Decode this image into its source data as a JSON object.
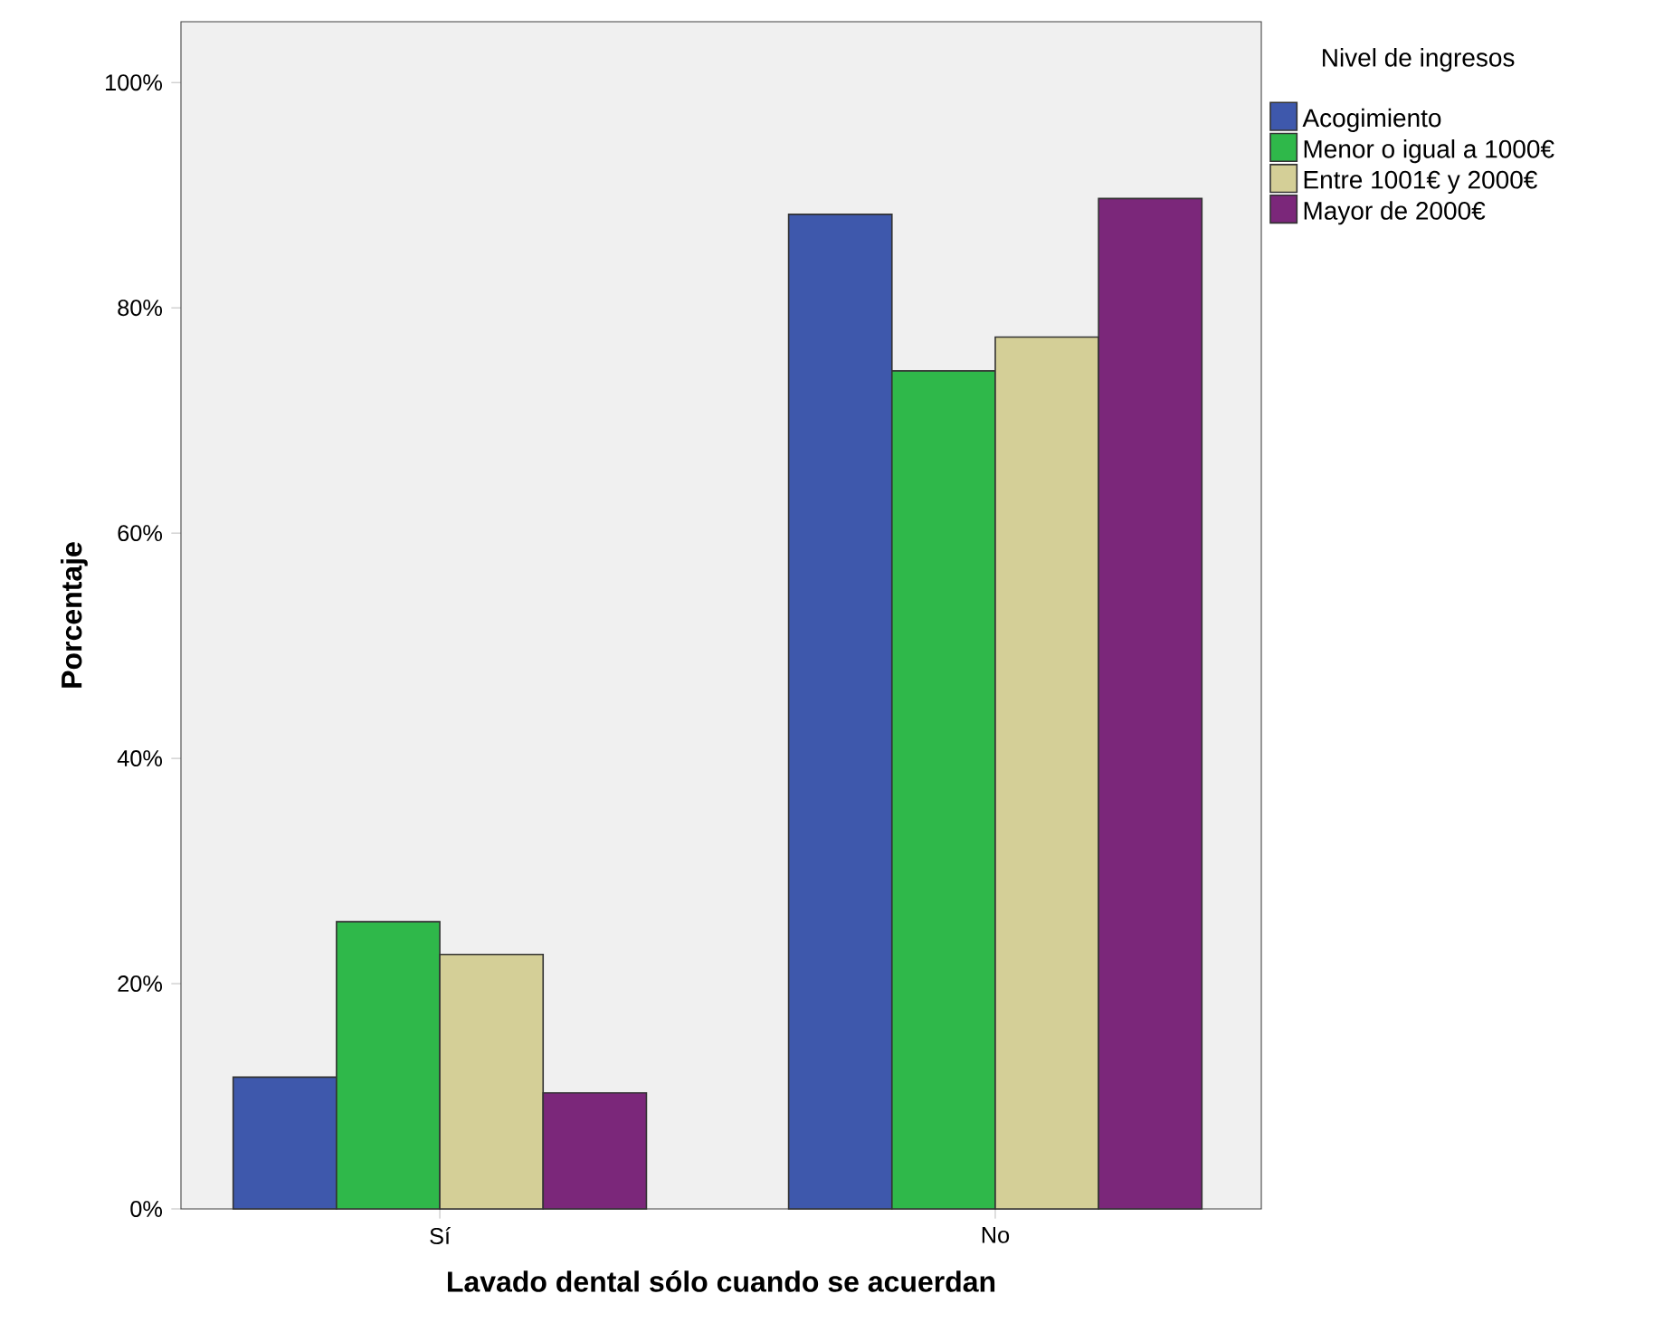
{
  "chart_data": {
    "type": "bar",
    "xlabel": "Lavado dental sólo cuando se acuerdan",
    "ylabel": "Porcentaje",
    "legend_title": "Nivel de ingresos",
    "categories": [
      "Sí",
      "No"
    ],
    "series": [
      {
        "name": "Acogimiento",
        "color": "#3e58ac",
        "values": [
          11.7,
          88.3
        ]
      },
      {
        "name": "Menor o igual a 1000€",
        "color": "#2fb84a",
        "values": [
          25.5,
          74.4
        ]
      },
      {
        "name": "Entre 1001€ y 2000€",
        "color": "#d4cf97",
        "values": [
          22.6,
          77.4
        ]
      },
      {
        "name": "Mayor de 2000€",
        "color": "#7b277a",
        "values": [
          10.3,
          89.7
        ]
      }
    ],
    "ylim": [
      0,
      105.4
    ],
    "yticks": [
      {
        "value": 0,
        "label": "0%"
      },
      {
        "value": 20,
        "label": "20%"
      },
      {
        "value": 40,
        "label": "40%"
      },
      {
        "value": 60,
        "label": "60%"
      },
      {
        "value": 80,
        "label": "80%"
      },
      {
        "value": 100,
        "label": "100%"
      }
    ],
    "grid": false,
    "legend": "top right"
  }
}
